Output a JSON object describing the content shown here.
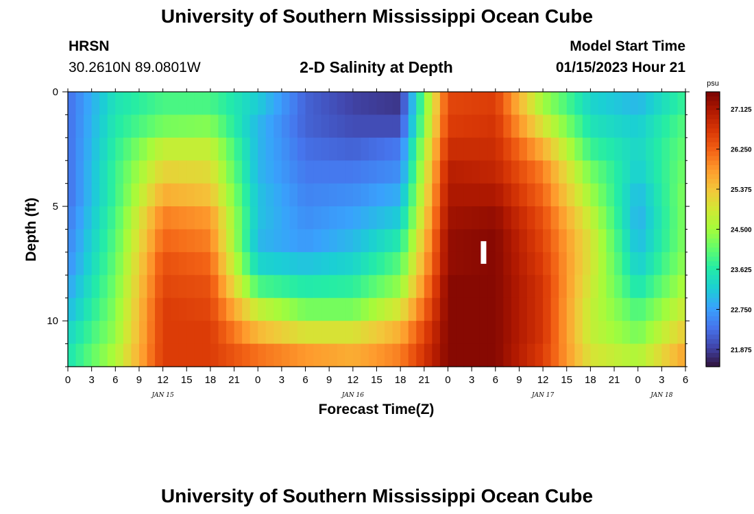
{
  "header": {
    "title": "University of Southern Mississippi Ocean Cube",
    "station": "HRSN",
    "coords": "30.2610N  89.0801W",
    "subtitle": "2-D Salinity at Depth",
    "model_start_label": "Model Start Time",
    "model_start_value": "01/15/2023 Hour 21",
    "footer_title": "University of Southern Mississippi Ocean Cube"
  },
  "chart_data": {
    "type": "heatmap",
    "title": "2-D Salinity at Depth",
    "xlabel": "Forecast Time(Z)",
    "ylabel": "Depth (ft)",
    "x_hours_range": [
      0,
      78
    ],
    "x_ticks": [
      "0",
      "3",
      "6",
      "9",
      "12",
      "15",
      "18",
      "21",
      "0",
      "3",
      "6",
      "9",
      "12",
      "15",
      "18",
      "21",
      "0",
      "3",
      "6",
      "9",
      "12",
      "15",
      "18",
      "21",
      "0",
      "3",
      "6"
    ],
    "day_labels": [
      {
        "label": "JAN 15",
        "hour": 12
      },
      {
        "label": "JAN 16",
        "hour": 36
      },
      {
        "label": "JAN 17",
        "hour": 60
      },
      {
        "label": "JAN 18",
        "hour": 75
      }
    ],
    "y_range_ft": [
      0,
      12
    ],
    "y_ticks": [
      "0",
      "5",
      "10"
    ],
    "colorbar": {
      "unit": "psu",
      "min": 21.5,
      "max": 27.5,
      "ticks": [
        "27.125",
        "26.250",
        "25.375",
        "24.500",
        "23.625",
        "22.750",
        "21.875"
      ]
    },
    "depth_levels_ft": [
      0.5,
      1.5,
      2.5,
      3.5,
      4.5,
      5.5,
      6.5,
      7.5,
      8.5,
      9.5,
      10.5,
      11.5
    ],
    "time_hours": [
      0,
      6,
      12,
      18,
      24,
      30,
      36,
      42,
      48,
      54,
      60,
      66,
      72,
      78
    ],
    "salinity_psu": [
      [
        22.3,
        23.5,
        23.9,
        23.9,
        23.2,
        22.2,
        21.9,
        21.8,
        26.5,
        26.6,
        24.5,
        23.3,
        23.0,
        23.8
      ],
      [
        22.3,
        23.6,
        24.2,
        24.3,
        23.0,
        22.2,
        22.0,
        22.0,
        26.6,
        26.7,
        25.0,
        23.5,
        23.2,
        24.0
      ],
      [
        22.3,
        23.7,
        24.8,
        24.8,
        23.0,
        22.3,
        22.2,
        22.4,
        26.8,
        26.8,
        25.6,
        23.8,
        23.3,
        24.1
      ],
      [
        22.3,
        23.8,
        25.2,
        25.1,
        23.0,
        22.4,
        22.4,
        22.6,
        27.0,
        26.9,
        26.0,
        24.2,
        23.2,
        24.2
      ],
      [
        22.3,
        23.8,
        25.6,
        25.4,
        23.1,
        22.5,
        22.6,
        22.9,
        27.1,
        27.1,
        26.2,
        24.5,
        23.0,
        24.3
      ],
      [
        22.4,
        23.9,
        26.0,
        25.8,
        23.1,
        22.6,
        22.8,
        23.2,
        27.2,
        27.3,
        26.4,
        24.8,
        22.9,
        24.3
      ],
      [
        22.5,
        24.0,
        26.2,
        26.0,
        23.0,
        22.7,
        23.0,
        23.6,
        27.3,
        27.4,
        26.5,
        25.0,
        23.0,
        24.3
      ],
      [
        22.6,
        24.1,
        26.4,
        26.2,
        23.3,
        23.1,
        23.3,
        24.0,
        27.3,
        27.4,
        26.6,
        25.0,
        23.2,
        24.4
      ],
      [
        22.8,
        24.2,
        26.5,
        26.4,
        23.9,
        23.6,
        23.7,
        24.4,
        27.4,
        27.4,
        26.7,
        24.9,
        23.5,
        24.6
      ],
      [
        23.0,
        24.3,
        26.6,
        26.5,
        24.8,
        24.2,
        24.2,
        25.0,
        27.4,
        27.4,
        26.7,
        24.8,
        23.9,
        24.9
      ],
      [
        23.3,
        24.4,
        26.6,
        26.6,
        25.5,
        25.0,
        25.0,
        25.6,
        27.4,
        27.4,
        26.7,
        24.8,
        24.2,
        25.3
      ],
      [
        23.5,
        24.6,
        26.6,
        26.6,
        26.1,
        25.8,
        25.6,
        26.0,
        27.4,
        27.4,
        26.6,
        25.0,
        24.6,
        25.7
      ]
    ],
    "marker": {
      "hour": 52.5,
      "depth_ft": 7.0
    }
  },
  "colors": {
    "colormap": [
      "#30123b",
      "#4145ab",
      "#4675ed",
      "#39a2fc",
      "#1bcfd4",
      "#24eca6",
      "#61fc6c",
      "#a4fc3b",
      "#d1e834",
      "#f3c63a",
      "#fe9b2d",
      "#f36315",
      "#d93806",
      "#b11901",
      "#7a0402"
    ],
    "marker": "#ffffff"
  }
}
